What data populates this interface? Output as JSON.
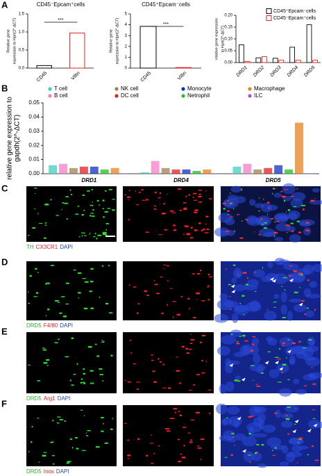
{
  "panel_labels": [
    "A",
    "B",
    "C",
    "D",
    "E",
    "F"
  ],
  "chart_data": [
    {
      "type": "bar",
      "title": "CD45⁻Epcam⁺cells",
      "ylabel": [
        "Relative gene",
        "expression to Hprt(2^-ΔCT)"
      ],
      "categories": [
        "CD45",
        "Villin"
      ],
      "values": [
        0.07,
        0.97
      ],
      "colors": [
        "#000000",
        "#e02020"
      ],
      "outline": true,
      "ylim": [
        0,
        1.5
      ],
      "yticks": [
        {
          "value": 0,
          "label": "0.0"
        },
        {
          "value": 0.5,
          "label": "0.5"
        },
        {
          "value": 1,
          "label": "1.0"
        },
        {
          "value": 1.5,
          "label": "1.5"
        }
      ],
      "annotation": "***"
    },
    {
      "type": "bar",
      "title": "CD45⁺Epcam⁻cells",
      "ylabel": [
        "Relative gene",
        "expression to Hprt(2^-ΔCT)"
      ],
      "categories": [
        "CD45",
        "Villin"
      ],
      "values": [
        3.85,
        0.05
      ],
      "colors": [
        "#000000",
        "#e02020"
      ],
      "outline": true,
      "ylim": [
        0,
        5
      ],
      "yticks": [
        0,
        1,
        2,
        3,
        4,
        5
      ],
      "annotation": "***"
    },
    {
      "type": "bar",
      "ylabel": [
        "relative gene expression",
        "to Hprt(2^-ΔCT)"
      ],
      "categories": [
        "DRD1",
        "DRD2",
        "DRD3",
        "DRD4",
        "DRD5"
      ],
      "outline": true,
      "series": [
        {
          "name": "CD45⁺Epcam⁻cells",
          "color": "#000000",
          "values": [
            0.075,
            0.02,
            0.018,
            0.065,
            0.16
          ]
        },
        {
          "name": "CD45⁻Epcam⁺cells",
          "color": "#e02020",
          "values": [
            0.005,
            0.025,
            0.01,
            0.01,
            0.01
          ]
        }
      ],
      "ylim": [
        0,
        0.2
      ],
      "yticks": [
        {
          "value": 0,
          "label": "0.00"
        },
        {
          "value": 0.05,
          "label": "0.05"
        },
        {
          "value": 0.1,
          "label": "0.10"
        },
        {
          "value": 0.15,
          "label": "0.15"
        },
        {
          "value": 0.2,
          "label": "0.20"
        }
      ]
    },
    {
      "type": "bar",
      "ylabel": [
        "relative gene expression to",
        "gapdh(2^-ΔCT)"
      ],
      "categories": [
        "DRD1",
        "DRD4",
        "DRD5"
      ],
      "outline": false,
      "series": [
        {
          "name": "T cell",
          "color": "#40d0c0",
          "values": [
            0.006,
            0.001,
            0.005
          ]
        },
        {
          "name": "B cell",
          "color": "#f080c8",
          "values": [
            0.007,
            0.009,
            0.007
          ]
        },
        {
          "name": "NK cell",
          "color": "#a08050",
          "values": [
            0.004,
            0.004,
            0.003
          ]
        },
        {
          "name": "DC cell",
          "color": "#e02020",
          "values": [
            0.005,
            0.003,
            0.004
          ]
        },
        {
          "name": "Monocyte",
          "color": "#1030c0",
          "values": [
            0.005,
            0.003,
            0.006
          ]
        },
        {
          "name": "Netrophil",
          "color": "#20c020",
          "values": [
            0.003,
            0.002,
            0.003
          ]
        },
        {
          "name": "Macrophage",
          "color": "#e8821e",
          "values": [
            0.004,
            0.003,
            0.036
          ]
        },
        {
          "name": "ILC",
          "color": "#b050d0",
          "values": [
            0,
            0,
            0
          ]
        }
      ],
      "ylim": [
        0,
        0.05
      ],
      "yticks": [
        {
          "value": 0,
          "label": "0.00"
        },
        {
          "value": 0.01,
          "label": "0.01"
        },
        {
          "value": 0.02,
          "label": "0.02"
        },
        {
          "value": 0.03,
          "label": "0.03"
        },
        {
          "value": 0.04,
          "label": "0.04"
        },
        {
          "value": 0.05,
          "label": "0.05"
        }
      ]
    }
  ],
  "image_captions": [
    [
      {
        "text": "TH",
        "color": "#30b030"
      },
      {
        "text": "CX3CR1",
        "color": "#e02020"
      },
      {
        "text": "DAPI",
        "color": "#2040c0"
      }
    ],
    [
      {
        "text": "DRD5",
        "color": "#30b030"
      },
      {
        "text": "F4/80",
        "color": "#e02020"
      },
      {
        "text": "DAPI",
        "color": "#2040c0"
      }
    ],
    [
      {
        "text": "DRD5",
        "color": "#30b030"
      },
      {
        "text": "Arg1",
        "color": "#e02020"
      },
      {
        "text": "DAPI",
        "color": "#2040c0"
      }
    ],
    [
      {
        "text": "DRD5",
        "color": "#30b030"
      },
      {
        "text": "Inos",
        "color": "#e02020"
      },
      {
        "text": "DAPI",
        "color": "#2040c0"
      }
    ]
  ]
}
